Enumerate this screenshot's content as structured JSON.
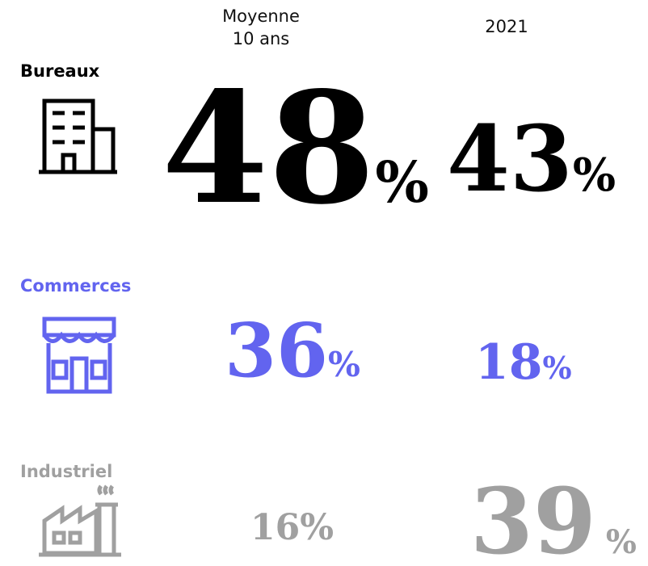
{
  "headers": [
    [
      "Moyenne",
      "10 ans"
    ],
    "2021"
  ],
  "rows": [
    {
      "label": "Bureaux",
      "cells": [
        {
          "number": 48,
          "unit": "%"
        },
        {
          "number": 43,
          "unit": "%"
        }
      ]
    },
    {
      "label": "Commerces",
      "cells": [
        {
          "number": 36,
          "unit": "%"
        },
        {
          "number": 18,
          "unit": "%"
        }
      ]
    },
    {
      "label": "Industriel",
      "cells": [
        {
          "number": 16,
          "unit": "%"
        },
        {
          "number": 39,
          "unit": "%"
        }
      ]
    }
  ]
}
